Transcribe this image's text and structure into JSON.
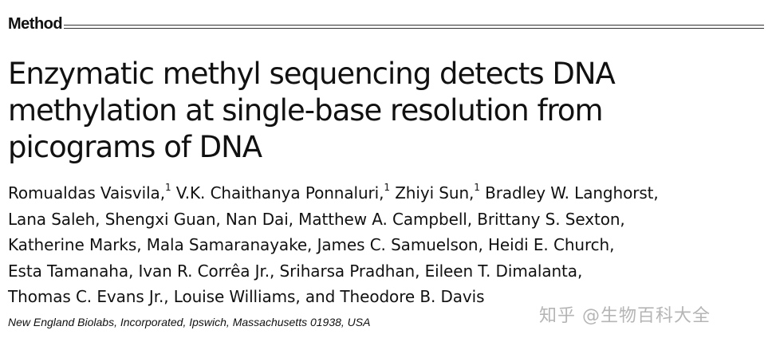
{
  "section_label": "Method",
  "title_lines": [
    "Enzymatic methyl sequencing detects DNA",
    "methylation at single-base resolution from",
    "picograms of DNA"
  ],
  "authors": {
    "a1": "Romualdas Vaisvila,",
    "a1_sup": "1",
    "a2": " V.K. Chaithanya Ponnaluri,",
    "a2_sup": "1",
    "a3": " Zhiyi Sun,",
    "a3_sup": "1",
    "line1_tail": " Bradley W. Langhorst,",
    "line2": "Lana Saleh, Shengxi Guan, Nan Dai, Matthew A. Campbell, Brittany S. Sexton,",
    "line3": "Katherine Marks, Mala Samaranayake, James C. Samuelson, Heidi E. Church,",
    "line4": "Esta Tamanaha, Ivan R. Corrêa Jr., Sriharsa Pradhan, Eileen T. Dimalanta,",
    "line5": "Thomas C. Evans Jr., Louise Williams, and Theodore B. Davis"
  },
  "affiliation": "New England Biolabs, Incorporated, Ipswich, Massachusetts 01938, USA",
  "watermark": "知乎 @生物百科大全"
}
